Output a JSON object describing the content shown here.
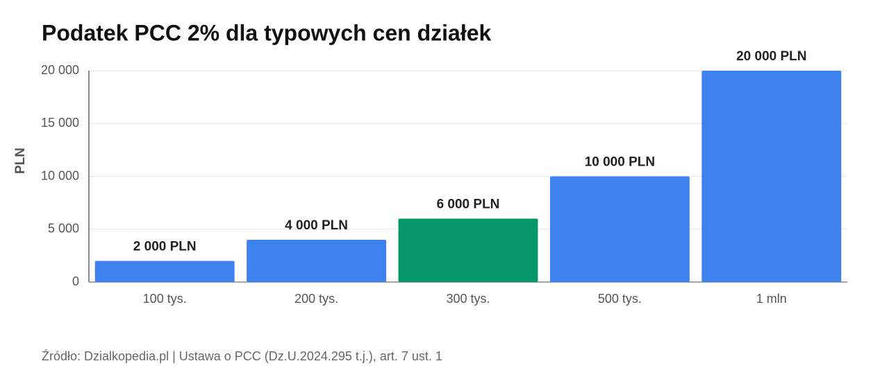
{
  "chart_data": {
    "type": "bar",
    "title": "Podatek PCC 2% dla typowych cen działek",
    "y_label": "PLN",
    "source": "Źródło: Dzialkopedia.pl | Ustawa o PCC (Dz.U.2024.295 t.j.), art. 7 ust. 1",
    "categories": [
      "100 tys.",
      "200 tys.",
      "300 tys.",
      "500 tys.",
      "1 mln"
    ],
    "values": [
      2000,
      4000,
      6000,
      10000,
      20000
    ],
    "value_labels": [
      "2 000 PLN",
      "4 000 PLN",
      "6 000 PLN",
      "10 000 PLN",
      "20 000 PLN"
    ],
    "colors": [
      "#3e82ef",
      "#3e82ef",
      "#05966a",
      "#3e82ef",
      "#3e82ef"
    ],
    "ylim": [
      0,
      20000
    ],
    "yticks": [
      0,
      {
        "value": 5000,
        "label": "5 000"
      },
      {
        "value": 10000,
        "label": "10 000"
      },
      {
        "value": 15000,
        "label": "15 000"
      },
      {
        "value": 20000,
        "label": "20 000"
      }
    ],
    "grid": true
  }
}
